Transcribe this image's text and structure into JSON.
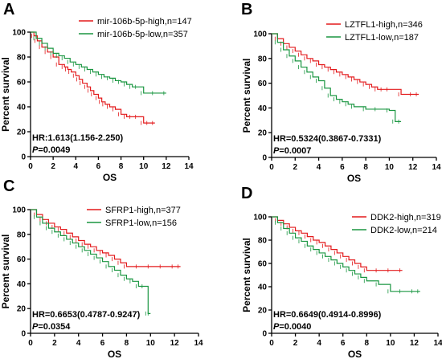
{
  "colors": {
    "high": "#e31a1c",
    "low": "#1a9641"
  },
  "chart_data": [
    {
      "type": "line",
      "panel": "A",
      "xlabel": "OS",
      "ylabel": "Percent survival",
      "xlim": [
        0,
        14
      ],
      "ylim": [
        0,
        100
      ],
      "xticks": [
        0,
        2,
        4,
        6,
        8,
        10,
        12,
        14
      ],
      "yticks": [
        0,
        20,
        40,
        60,
        80,
        100
      ],
      "legend_position": "top-right",
      "hr": "HR:1.613(1.156-2.250)",
      "p_label": "P",
      "p_value": "=0.0049",
      "series": [
        {
          "name": "mir-106b-5p-high,n=147",
          "color": "#e31a1c",
          "x": [
            0,
            0.3,
            0.6,
            1,
            1.5,
            2,
            2.5,
            3,
            3.3,
            3.6,
            4,
            4.3,
            4.6,
            5,
            5.3,
            5.6,
            6,
            6.3,
            6.6,
            7,
            7.5,
            8,
            8.5,
            9,
            9.5,
            10,
            10.5,
            11
          ],
          "y": [
            100,
            97,
            93,
            88,
            84,
            80,
            74,
            72,
            70,
            68,
            65,
            62,
            59,
            56,
            53,
            50,
            47,
            44,
            42,
            40,
            38,
            34,
            32,
            32,
            32,
            27,
            27,
            27
          ]
        },
        {
          "name": "mir-106b-5p-low,n=357",
          "color": "#1a9641",
          "x": [
            0,
            0.5,
            1,
            1.5,
            2,
            2.5,
            3,
            3.5,
            4,
            4.5,
            5,
            5.5,
            6,
            6.5,
            7,
            7.5,
            8,
            8.5,
            9,
            9.5,
            10,
            11,
            12
          ],
          "y": [
            100,
            95,
            91,
            87,
            83,
            81,
            79,
            76,
            74,
            72,
            70,
            68,
            66,
            64,
            63,
            61,
            60,
            58,
            56,
            56,
            51,
            51,
            51
          ]
        }
      ]
    },
    {
      "type": "line",
      "panel": "B",
      "xlabel": "OS",
      "ylabel": "Percent survival",
      "xlim": [
        0,
        14
      ],
      "ylim": [
        0,
        100
      ],
      "xticks": [
        0,
        2,
        4,
        6,
        8,
        10,
        12,
        14
      ],
      "yticks": [
        0,
        20,
        40,
        60,
        80,
        100
      ],
      "legend_position": "top-right",
      "hr": "HR=0.5324(0.3867-0.7331)",
      "p_label": "P",
      "p_value": "=0.0007",
      "series": [
        {
          "name": "LZTFL1-high,n=346",
          "color": "#e31a1c",
          "x": [
            0,
            0.5,
            1,
            1.5,
            2,
            2.5,
            3,
            3.5,
            4,
            4.5,
            5,
            5.5,
            6,
            6.5,
            7,
            7.5,
            8,
            8.5,
            9,
            9.5,
            10,
            11,
            12,
            12.5
          ],
          "y": [
            100,
            96,
            92,
            89,
            86,
            83,
            80,
            78,
            75,
            73,
            71,
            69,
            67,
            65,
            63,
            61,
            59,
            57,
            55,
            55,
            55,
            51,
            51,
            51
          ]
        },
        {
          "name": "LZTFL1-low,n=187",
          "color": "#1a9641",
          "x": [
            0,
            0.5,
            1,
            1.5,
            2,
            2.5,
            3,
            3.5,
            4,
            4.5,
            5,
            5.5,
            6,
            6.5,
            7,
            8,
            9,
            10,
            10.5,
            11
          ],
          "y": [
            100,
            93,
            87,
            82,
            78,
            73,
            69,
            65,
            62,
            56,
            50,
            47,
            45,
            43,
            41,
            39,
            39,
            38,
            29,
            29
          ]
        }
      ]
    },
    {
      "type": "line",
      "panel": "C",
      "xlabel": "OS",
      "ylabel": "Percent survival",
      "xlim": [
        0,
        14
      ],
      "ylim": [
        0,
        100
      ],
      "xticks": [
        0,
        2,
        4,
        6,
        8,
        10,
        12,
        14
      ],
      "yticks": [
        0,
        20,
        40,
        60,
        80,
        100
      ],
      "legend_position": "top-right",
      "hr": "HR=0.6653(0.4787-0.9247)",
      "p_label": "P",
      "p_value": "=0.0354",
      "series": [
        {
          "name": "SFRP1-high,n=377",
          "color": "#e31a1c",
          "x": [
            0,
            0.5,
            1,
            1.5,
            2,
            2.5,
            3,
            3.5,
            4,
            4.5,
            5,
            5.5,
            6,
            6.5,
            7,
            7.5,
            8,
            9,
            10,
            11,
            12,
            12.5
          ],
          "y": [
            100,
            96,
            92,
            89,
            86,
            84,
            81,
            78,
            75,
            72,
            70,
            67,
            65,
            63,
            60,
            57,
            54,
            54,
            54,
            54,
            54,
            54
          ]
        },
        {
          "name": "SFRP1-low,n=156",
          "color": "#1a9641",
          "x": [
            0,
            0.5,
            1,
            1.5,
            2,
            2.5,
            3,
            3.5,
            4,
            4.5,
            5,
            5.5,
            6,
            6.5,
            7,
            7.5,
            8,
            8.5,
            9,
            9.5,
            9.8,
            10
          ],
          "y": [
            100,
            94,
            89,
            85,
            82,
            79,
            76,
            73,
            70,
            67,
            64,
            61,
            58,
            54,
            51,
            47,
            44,
            42,
            38,
            38,
            16,
            16
          ]
        }
      ]
    },
    {
      "type": "line",
      "panel": "D",
      "xlabel": "OS",
      "ylabel": "Percent survival",
      "xlim": [
        0,
        14
      ],
      "ylim": [
        0,
        100
      ],
      "xticks": [
        0,
        2,
        4,
        6,
        8,
        10,
        12,
        14
      ],
      "yticks": [
        0,
        20,
        40,
        60,
        80,
        100
      ],
      "legend_position": "top-right",
      "hr": "HR=0.6649(0.4914-0.8996)",
      "p_label": "P",
      "p_value": "=0.0040",
      "series": [
        {
          "name": "DDK2-high,n=319",
          "color": "#e31a1c",
          "x": [
            0,
            0.5,
            1,
            1.5,
            2,
            2.5,
            3,
            3.5,
            4,
            4.5,
            5,
            5.5,
            6,
            6.5,
            7,
            7.5,
            8,
            9,
            10,
            11
          ],
          "y": [
            100,
            97,
            94,
            91,
            88,
            86,
            83,
            80,
            78,
            75,
            72,
            69,
            66,
            63,
            60,
            57,
            54,
            54,
            54,
            54
          ]
        },
        {
          "name": "DDK2-low,n=214",
          "color": "#1a9641",
          "x": [
            0,
            0.5,
            1,
            1.5,
            2,
            2.5,
            3,
            3.5,
            4,
            4.5,
            5,
            5.5,
            6,
            6.5,
            7,
            7.5,
            8,
            9,
            10,
            11,
            12,
            12.5
          ],
          "y": [
            100,
            95,
            90,
            86,
            82,
            79,
            75,
            72,
            69,
            66,
            63,
            60,
            57,
            54,
            51,
            48,
            45,
            42,
            36,
            36,
            36,
            36
          ]
        }
      ]
    }
  ]
}
